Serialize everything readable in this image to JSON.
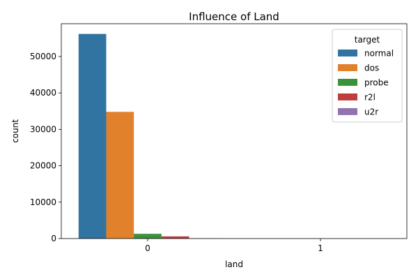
{
  "chart_data": {
    "type": "bar",
    "title": "Influence of Land",
    "xlabel": "land",
    "ylabel": "count",
    "categories": [
      "0",
      "1"
    ],
    "ylim": [
      0,
      59000
    ],
    "yticks": [
      0,
      10000,
      20000,
      30000,
      40000,
      50000
    ],
    "grid": false,
    "legend": {
      "title": "target",
      "placement": "top-right"
    },
    "series": [
      {
        "name": "normal",
        "color": "#3274a1",
        "values": [
          56200,
          0
        ]
      },
      {
        "name": "dos",
        "color": "#e1812c",
        "values": [
          34800,
          0
        ]
      },
      {
        "name": "probe",
        "color": "#3a923a",
        "values": [
          1300,
          0
        ]
      },
      {
        "name": "r2l",
        "color": "#c03d3e",
        "values": [
          600,
          0
        ]
      },
      {
        "name": "u2r",
        "color": "#9372b2",
        "values": [
          50,
          0
        ]
      }
    ]
  }
}
